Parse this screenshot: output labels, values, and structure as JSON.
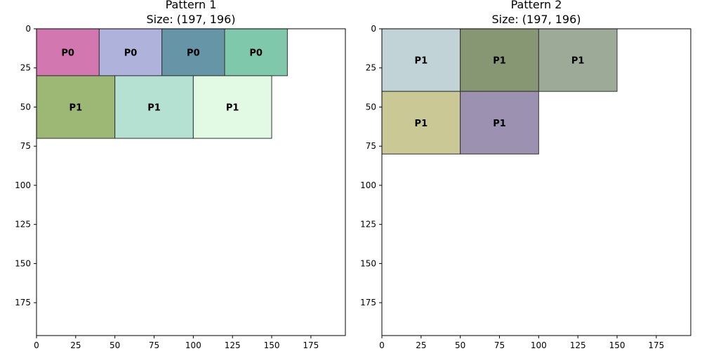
{
  "chart_data": [
    {
      "type": "rectangle-packing",
      "title": "Pattern 1",
      "subtitle": "Size: (197, 196)",
      "xlim": [
        0,
        197
      ],
      "ylim": [
        0,
        196
      ],
      "y_inverted": true,
      "xticks": [
        0,
        25,
        50,
        75,
        100,
        125,
        150,
        175
      ],
      "yticks": [
        0,
        25,
        50,
        75,
        100,
        125,
        150,
        175
      ],
      "grid": false,
      "rectangles": [
        {
          "label": "P0",
          "x": 0,
          "y": 0,
          "w": 40,
          "h": 30,
          "color": "#d277b0"
        },
        {
          "label": "P0",
          "x": 40,
          "y": 0,
          "w": 40,
          "h": 30,
          "color": "#afb3dc"
        },
        {
          "label": "P0",
          "x": 80,
          "y": 0,
          "w": 40,
          "h": 30,
          "color": "#6595a7"
        },
        {
          "label": "P0",
          "x": 120,
          "y": 0,
          "w": 40,
          "h": 30,
          "color": "#80c8ab"
        },
        {
          "label": "P1",
          "x": 0,
          "y": 30,
          "w": 50,
          "h": 40,
          "color": "#9db874"
        },
        {
          "label": "P1",
          "x": 50,
          "y": 30,
          "w": 50,
          "h": 40,
          "color": "#b4e1d2"
        },
        {
          "label": "P1",
          "x": 100,
          "y": 30,
          "w": 50,
          "h": 40,
          "color": "#e2f9e4"
        }
      ]
    },
    {
      "type": "rectangle-packing",
      "title": "Pattern 2",
      "subtitle": "Size: (197, 196)",
      "xlim": [
        0,
        197
      ],
      "ylim": [
        0,
        196
      ],
      "y_inverted": true,
      "xticks": [
        0,
        25,
        50,
        75,
        100,
        125,
        150,
        175
      ],
      "yticks": [
        0,
        25,
        50,
        75,
        100,
        125,
        150,
        175
      ],
      "grid": false,
      "rectangles": [
        {
          "label": "P1",
          "x": 0,
          "y": 0,
          "w": 50,
          "h": 40,
          "color": "#c2d3d7"
        },
        {
          "label": "P1",
          "x": 50,
          "y": 0,
          "w": 50,
          "h": 40,
          "color": "#879673"
        },
        {
          "label": "P1",
          "x": 100,
          "y": 0,
          "w": 50,
          "h": 40,
          "color": "#9eaa98"
        },
        {
          "label": "P1",
          "x": 0,
          "y": 40,
          "w": 50,
          "h": 40,
          "color": "#cac895"
        },
        {
          "label": "P1",
          "x": 50,
          "y": 40,
          "w": 50,
          "h": 40,
          "color": "#9d91b2"
        }
      ]
    }
  ]
}
